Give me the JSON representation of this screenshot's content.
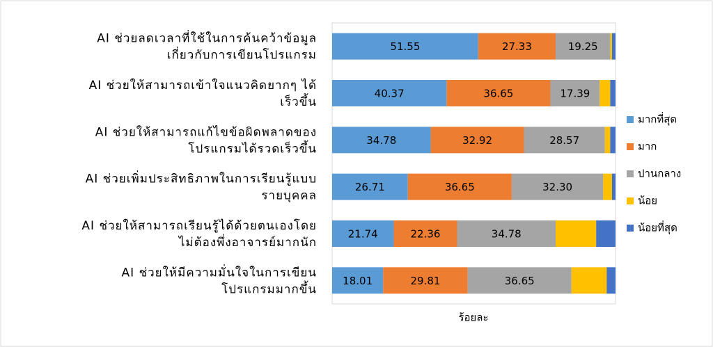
{
  "chart_data": {
    "type": "stacked-bar-horizontal",
    "x_label": "ร้อยละ",
    "categories": [
      [
        "AI ช่วยลดเวลาที่ใช้ในการค้นคว้าข้อมูล",
        "เกี่ยวกับการเขียนโปรแกรม"
      ],
      [
        "AI ช่วยให้สามารถเข้าใจแนวคิดยากๆ ได้",
        "เร็วขึ้น"
      ],
      [
        "AI ช่วยให้สามารถแก้ไขข้อผิดพลาดของ",
        "โปรแกรมได้รวดเร็วขึ้น"
      ],
      [
        "AI ช่วยเพิ่มประสิทธิภาพในการเรียนรู้แบบ",
        "รายบุคคล"
      ],
      [
        "AI ช่วยให้สามารถเรียนรู้ได้ด้วยตนเองโดย",
        "ไม่ต้องพึ่งอาจารย์มากนัก"
      ],
      [
        "AI ช่วยให้มีความมั่นใจในการเขียน",
        "โปรแกรมมากขึ้น"
      ]
    ],
    "series": [
      {
        "name": "มากที่สุด",
        "color": "#5b9bd5",
        "values": [
          51.55,
          40.37,
          34.78,
          26.71,
          21.74,
          18.01
        ],
        "value_labels": [
          "51.55",
          "40.37",
          "34.78",
          "26.71",
          "21.74",
          "18.01"
        ]
      },
      {
        "name": "มาก",
        "color": "#ed7d31",
        "values": [
          27.33,
          36.65,
          32.92,
          36.65,
          22.36,
          29.81
        ],
        "value_labels": [
          "27.33",
          "36.65",
          "32.92",
          "36.65",
          "22.36",
          "29.81"
        ]
      },
      {
        "name": "ปานกลาง",
        "color": "#a5a5a5",
        "values": [
          19.25,
          17.39,
          28.57,
          32.3,
          34.78,
          36.65
        ],
        "value_labels": [
          "19.25",
          "17.39",
          "28.57",
          "32.30",
          "34.78",
          "36.65"
        ]
      },
      {
        "name": "น้อย",
        "color": "#ffc000",
        "values": [
          0.62,
          3.73,
          1.86,
          3.11,
          14.29,
          12.42
        ]
      },
      {
        "name": "น้อยที่สุด",
        "color": "#4472c4",
        "values": [
          1.24,
          1.86,
          1.86,
          1.24,
          6.83,
          3.11
        ]
      }
    ],
    "xlim": [
      0,
      100
    ],
    "legend": "right"
  }
}
